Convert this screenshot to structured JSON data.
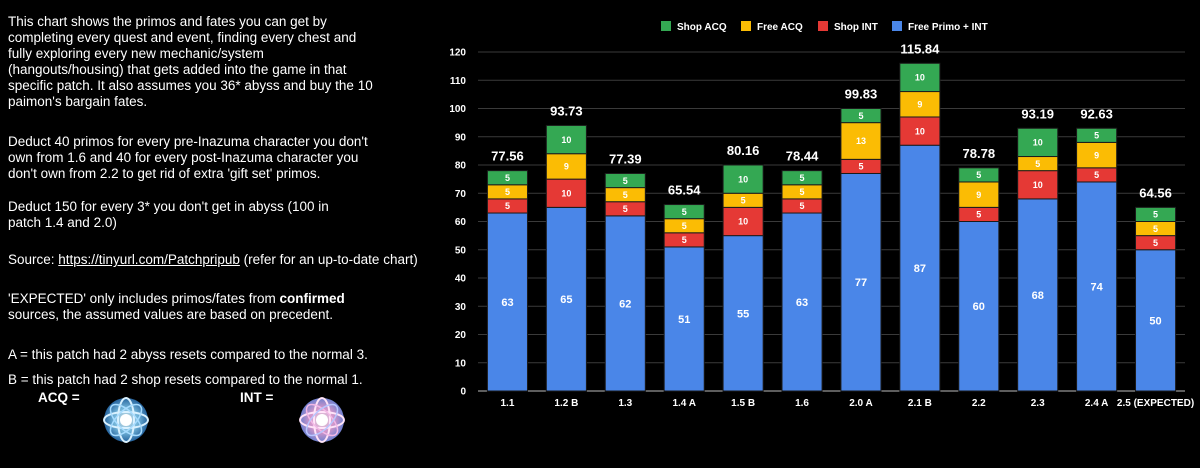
{
  "description": {
    "intro": "This chart shows the primos and fates you can get by completing every quest and event, finding every chest and fully exploring every new mechanic/system (hangouts/housing) that gets added into the game in that specific patch. It also assumes you 36* abyss and buy the 10 paimon's bargain fates.",
    "deduct_characters": "Deduct 40 primos for every pre-Inazuma character you don't own from 1.6 and 40 for every post-Inazuma character you don't own from 2.2 to get rid of extra 'gift set' primos.",
    "deduct_abyss": "Deduct 150 for every 3* you don't get in abyss (100 in patch 1.4 and 2.0)",
    "source_label": "Source: ",
    "source_link": "https://tinyurl.com/Patchpripub",
    "source_suffix": " (refer for an up-to-date chart)",
    "expected_pre": "'EXPECTED' only includes primos/fates from ",
    "expected_bold": "confirmed",
    "expected_post": " sources, the assumed values are based on precedent.",
    "note_a": "A = this patch had 2 abyss resets compared to the normal 3.",
    "note_b": "B = this patch had 2 shop resets compared to the normal 1.",
    "acq_label": "ACQ =",
    "int_label": "INT =",
    "acq_icon": "acquaint-fate-icon",
    "int_icon": "intertwined-fate-icon"
  },
  "chart_data": {
    "type": "bar",
    "stacked": true,
    "categories": [
      "1.1",
      "1.2 B",
      "1.3",
      "1.4 A",
      "1.5 B",
      "1.6",
      "2.0 A",
      "2.1 B",
      "2.2",
      "2.3",
      "2.4 A",
      "2.5 (EXPECTED)"
    ],
    "totals": [
      "77.56",
      "93.73",
      "77.39",
      "65.54",
      "80.16",
      "78.44",
      "99.83",
      "115.84",
      "78.78",
      "93.19",
      "92.63",
      "64.56"
    ],
    "series": [
      {
        "name": "Free Primo + INT",
        "color": "#4a86e8",
        "values": [
          63,
          65,
          62,
          51,
          55,
          63,
          77,
          87,
          60,
          68,
          74,
          50
        ]
      },
      {
        "name": "Shop INT",
        "color": "#e53935",
        "values": [
          5,
          10,
          5,
          5,
          10,
          5,
          5,
          10,
          5,
          10,
          5,
          5
        ]
      },
      {
        "name": "Free ACQ",
        "color": "#fbbc04",
        "values": [
          5,
          9,
          5,
          5,
          5,
          5,
          13,
          9,
          9,
          5,
          9,
          5
        ]
      },
      {
        "name": "Shop ACQ",
        "color": "#34a853",
        "values": [
          5,
          10,
          5,
          5,
          10,
          5,
          5,
          10,
          5,
          10,
          5,
          5
        ]
      }
    ],
    "legend_order": [
      "Shop ACQ",
      "Free ACQ",
      "Shop INT",
      "Free Primo + INT"
    ],
    "legend_position": "top",
    "ylim": [
      0,
      120
    ],
    "yticks": [
      0,
      10,
      20,
      30,
      40,
      50,
      60,
      70,
      80,
      90,
      100,
      110,
      120
    ],
    "grid": true,
    "xlabel": "",
    "ylabel": ""
  }
}
